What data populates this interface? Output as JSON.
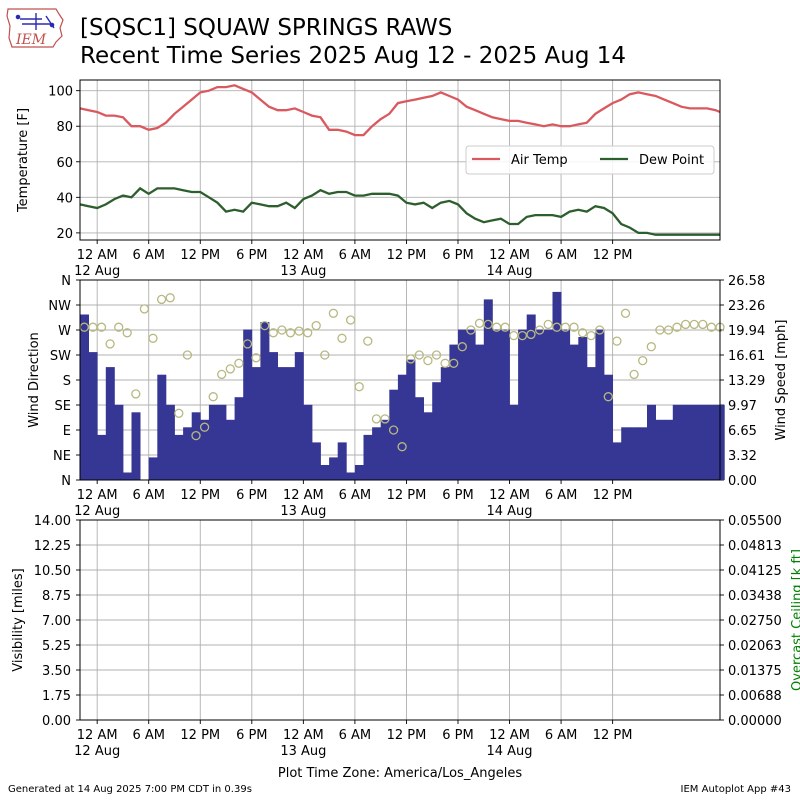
{
  "header": {
    "logo_text": "IEM",
    "title_line1": "[SQSC1] SQUAW SPRINGS RAWS",
    "title_line2": "Recent Time Series 2025 Aug 12 - 2025 Aug 14"
  },
  "footer": {
    "generated": "Generated at 14 Aug 2025 7:00 PM CDT in 0.39s",
    "app": "IEM Autoplot App #43"
  },
  "colors": {
    "air_temp": "#d9595f",
    "dew_point": "#2d5e2d",
    "wind_speed_bar": "#363694",
    "wind_dir_marker": "#b8b882",
    "grid": "#b0b0b0",
    "ceiling_axis_label": "#008000"
  },
  "chart_data": [
    {
      "type": "line",
      "ylabel": "Temperature [F]",
      "ylim": [
        16,
        106
      ],
      "yticks": [
        20,
        40,
        60,
        80,
        100
      ],
      "grid": true,
      "legend_position": "right",
      "xlim_hours": [
        -2,
        72.5
      ],
      "xtick_hours": [
        0,
        6,
        12,
        18,
        24,
        30,
        36,
        42,
        48,
        54,
        60
      ],
      "xtick_labels": [
        "12 AM",
        "6 AM",
        "12 PM",
        "6 PM",
        "12 AM",
        "6 AM",
        "12 PM",
        "6 PM",
        "12 AM",
        "6 AM",
        "12 PM"
      ],
      "xtick_sublabels": {
        "0": "12 Aug",
        "24": "13 Aug",
        "48": "14 Aug"
      },
      "series": [
        {
          "name": "Air Temp",
          "x": [
            -2,
            -1,
            0,
            1,
            2,
            3,
            4,
            5,
            6,
            7,
            8,
            9,
            10,
            11,
            12,
            13,
            14,
            15,
            16,
            17,
            18,
            19,
            20,
            21,
            22,
            23,
            24,
            25,
            26,
            27,
            28,
            29,
            30,
            31,
            32,
            33,
            34,
            35,
            36,
            37,
            38,
            39,
            40,
            41,
            42,
            43,
            44,
            45,
            46,
            47,
            48,
            49,
            50,
            51,
            52,
            53,
            54,
            55,
            56,
            57,
            58,
            59,
            60,
            61,
            62,
            63,
            64,
            65,
            66,
            67,
            68,
            69,
            70,
            71,
            72,
            72.5
          ],
          "y": [
            90,
            89,
            88,
            86,
            86,
            85,
            80,
            80,
            78,
            79,
            82,
            87,
            91,
            95,
            99,
            100,
            102,
            102,
            103,
            101,
            99,
            95,
            91,
            89,
            89,
            90,
            88,
            86,
            85,
            78,
            78,
            77,
            75,
            75,
            80,
            84,
            87,
            93,
            94,
            95,
            96,
            97,
            99,
            97,
            95,
            91,
            89,
            87,
            85,
            84,
            83,
            83,
            82,
            81,
            80,
            81,
            80,
            80,
            81,
            82,
            87,
            90,
            93,
            95,
            98,
            99,
            98,
            97,
            95,
            93,
            91,
            90,
            90,
            90,
            89,
            88
          ]
        },
        {
          "name": "Dew Point",
          "x": [
            -2,
            -1,
            0,
            1,
            2,
            3,
            4,
            5,
            6,
            7,
            8,
            9,
            10,
            11,
            12,
            13,
            14,
            15,
            16,
            17,
            18,
            19,
            20,
            21,
            22,
            23,
            24,
            25,
            26,
            27,
            28,
            29,
            30,
            31,
            32,
            33,
            34,
            35,
            36,
            37,
            38,
            39,
            40,
            41,
            42,
            43,
            44,
            45,
            46,
            47,
            48,
            49,
            50,
            51,
            52,
            53,
            54,
            55,
            56,
            57,
            58,
            59,
            60,
            61,
            62,
            63,
            64,
            65,
            66,
            67,
            68,
            69,
            70,
            71,
            72,
            72.5
          ],
          "y": [
            36,
            35,
            34,
            36,
            39,
            41,
            40,
            45,
            42,
            45,
            45,
            45,
            44,
            43,
            43,
            40,
            37,
            32,
            33,
            32,
            37,
            36,
            35,
            35,
            37,
            34,
            39,
            41,
            44,
            42,
            43,
            43,
            41,
            41,
            42,
            42,
            42,
            41,
            37,
            36,
            37,
            34,
            37,
            38,
            36,
            31,
            28,
            26,
            27,
            28,
            25,
            25,
            29,
            30,
            30,
            30,
            29,
            32,
            33,
            32,
            35,
            34,
            31,
            25,
            23,
            20,
            20,
            19,
            19,
            19,
            19,
            19,
            19,
            19,
            19,
            19
          ]
        }
      ]
    },
    {
      "type": "bar",
      "ylabel": "Wind Direction",
      "y2label": "Wind Speed [mph]",
      "y_direction_labels": [
        "N",
        "NE",
        "E",
        "SE",
        "S",
        "SW",
        "W",
        "NW",
        "N"
      ],
      "y2lim": [
        0,
        26.58
      ],
      "y2ticks": [
        "0.00",
        "3.32",
        "6.65",
        "9.97",
        "13.29",
        "16.61",
        "19.94",
        "23.26",
        "26.58"
      ],
      "grid": true,
      "xtick_labels": [
        "12 AM",
        "6 AM",
        "12 PM",
        "6 PM",
        "12 AM",
        "6 AM",
        "12 PM",
        "6 PM",
        "12 AM",
        "6 AM",
        "12 PM"
      ],
      "xtick_sublabels": {
        "0": "12 Aug",
        "24": "13 Aug",
        "48": "14 Aug"
      },
      "series": [
        {
          "name": "Wind Speed",
          "x": [
            -2,
            -1,
            0,
            1,
            2,
            3,
            4,
            5,
            6,
            7,
            8,
            9,
            10,
            11,
            12,
            13,
            14,
            15,
            16,
            17,
            18,
            19,
            20,
            21,
            22,
            23,
            24,
            25,
            26,
            27,
            28,
            29,
            30,
            31,
            32,
            33,
            34,
            35,
            36,
            37,
            38,
            39,
            40,
            41,
            42,
            43,
            44,
            45,
            46,
            47,
            48,
            49,
            50,
            51,
            52,
            53,
            54,
            55,
            56,
            57,
            58,
            59,
            60,
            61,
            62,
            63,
            64,
            65,
            66,
            67,
            68,
            69,
            70,
            71,
            72
          ],
          "values": [
            22,
            17,
            6,
            15,
            10,
            1,
            9,
            0,
            3,
            14,
            10,
            6,
            7,
            9,
            8,
            10,
            10,
            8,
            11,
            20,
            15,
            21,
            17,
            15,
            15,
            17,
            10,
            5,
            2,
            3,
            5,
            1,
            2,
            6,
            7,
            8,
            12,
            14,
            16,
            11,
            9,
            13,
            15,
            18,
            20,
            20,
            18,
            24,
            20,
            20,
            10,
            20,
            22,
            20,
            20,
            25,
            20,
            18,
            19,
            15,
            20,
            14,
            5,
            7,
            7,
            7,
            10,
            8,
            8,
            10,
            10,
            10,
            10,
            10,
            10
          ]
        },
        {
          "name": "Wind Direction",
          "x": [
            -2,
            -1,
            0,
            1,
            2,
            3,
            4,
            5,
            6,
            7,
            8,
            9,
            10,
            11,
            12,
            13,
            14,
            15,
            16,
            17,
            18,
            19,
            20,
            21,
            22,
            23,
            24,
            25,
            26,
            27,
            28,
            29,
            30,
            31,
            32,
            33,
            34,
            35,
            36,
            37,
            38,
            39,
            40,
            41,
            42,
            43,
            44,
            45,
            46,
            47,
            48,
            49,
            50,
            51,
            52,
            53,
            54,
            55,
            56,
            57,
            58,
            59,
            60,
            61,
            62,
            63,
            64,
            65,
            66,
            67,
            68,
            69,
            70,
            71,
            72
          ],
          "degrees": [
            275,
            275,
            275,
            245,
            275,
            265,
            155,
            308,
            255,
            325,
            328,
            120,
            225,
            80,
            95,
            150,
            190,
            200,
            210,
            245,
            220,
            278,
            265,
            270,
            265,
            268,
            265,
            278,
            225,
            300,
            255,
            288,
            168,
            250,
            110,
            110,
            90,
            60,
            218,
            225,
            215,
            225,
            210,
            210,
            240,
            270,
            282,
            280,
            275,
            275,
            260,
            260,
            262,
            270,
            280,
            275,
            275,
            275,
            265,
            260,
            270,
            150,
            250,
            300,
            190,
            215,
            240,
            270,
            270,
            275,
            280,
            280,
            280,
            275,
            275
          ]
        }
      ]
    },
    {
      "type": "line",
      "ylabel": "Visibility [miles]",
      "y2label": "Overcast Ceiling [k ft]",
      "ylim": [
        0,
        14
      ],
      "yticks": [
        "0.00",
        "1.75",
        "3.50",
        "5.25",
        "7.00",
        "8.75",
        "10.50",
        "12.25",
        "14.00"
      ],
      "y2lim": [
        0,
        0.055
      ],
      "y2ticks": [
        "0.00000",
        "0.00688",
        "0.01375",
        "0.02063",
        "0.02750",
        "0.03438",
        "0.04125",
        "0.04813",
        "0.05500"
      ],
      "grid": true,
      "xlabel": "Plot Time Zone: America/Los_Angeles",
      "xtick_labels": [
        "12 AM",
        "6 AM",
        "12 PM",
        "6 PM",
        "12 AM",
        "6 AM",
        "12 PM",
        "6 PM",
        "12 AM",
        "6 AM",
        "12 PM"
      ],
      "xtick_sublabels": {
        "0": "12 Aug",
        "24": "13 Aug",
        "48": "14 Aug"
      },
      "series": []
    }
  ]
}
